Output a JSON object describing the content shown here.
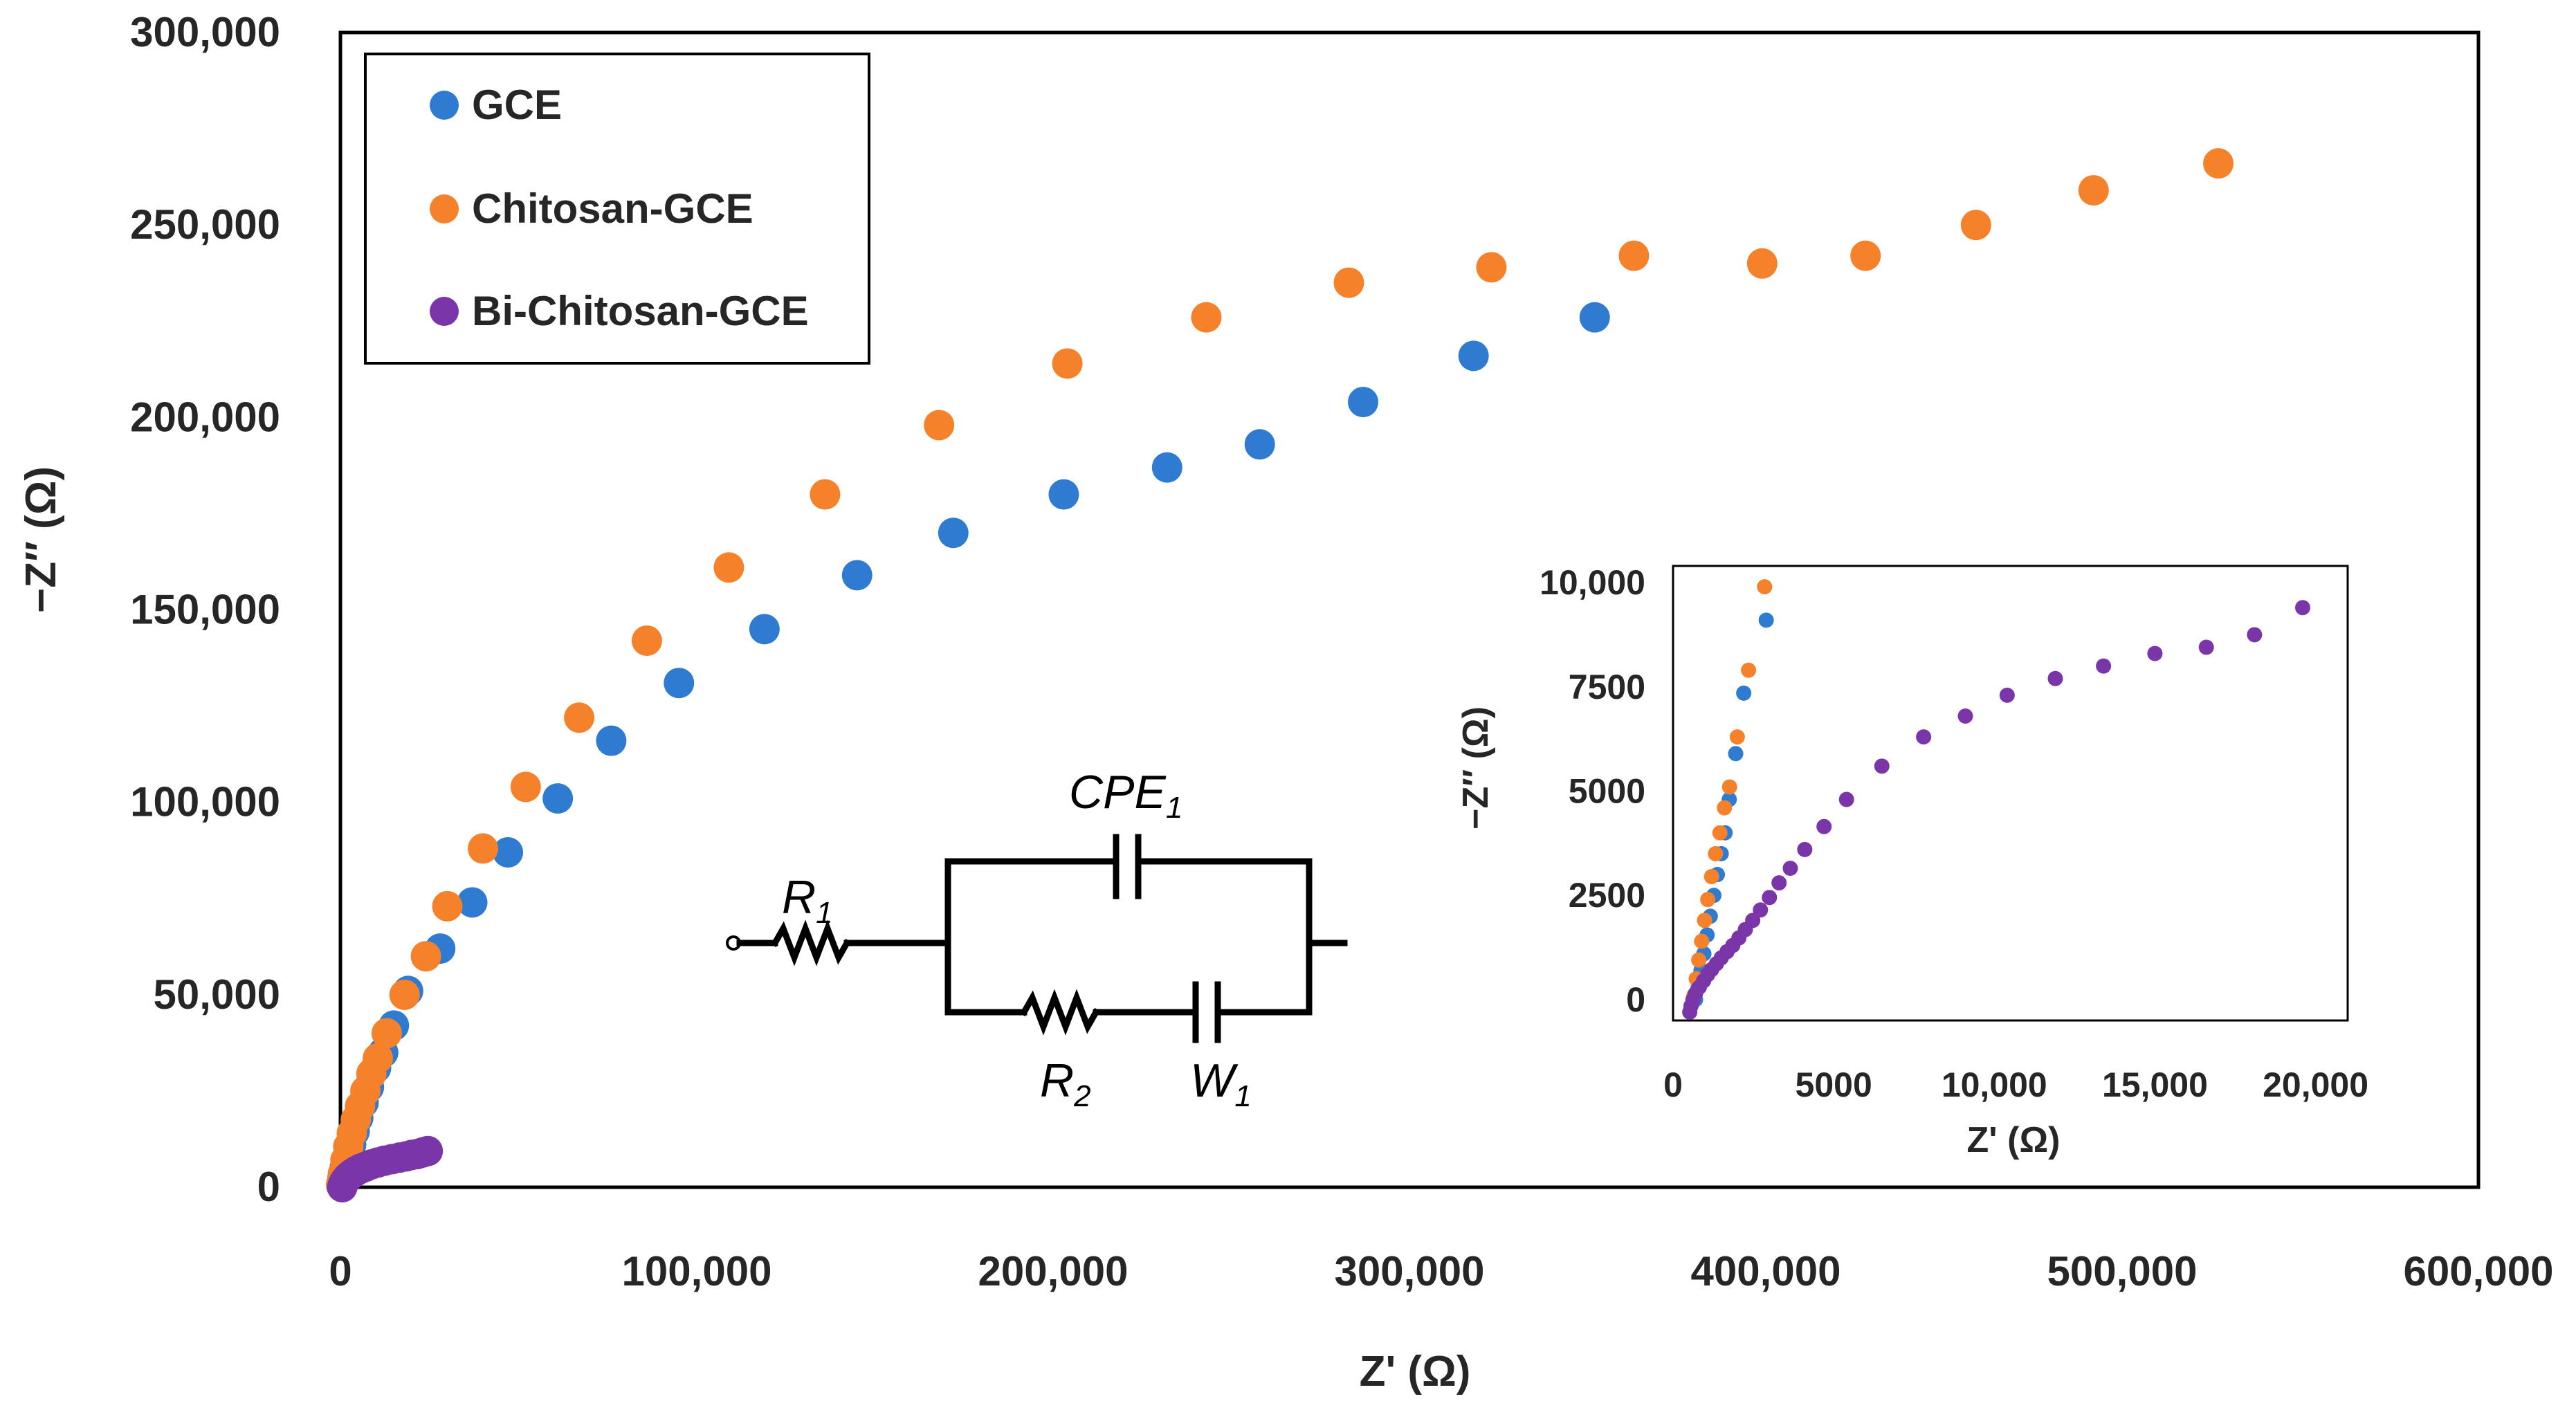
{
  "colors": {
    "GCE": "#2f7bd2",
    "Chitosan-GCE": "#f5822a",
    "Bi-Chitosan-GCE": "#7a35a9"
  },
  "chart_data": [
    {
      "type": "scatter",
      "title": "",
      "xlabel": "Z' (Ω)",
      "ylabel": "−Z″ (Ω)",
      "xlim": [
        0,
        600000
      ],
      "ylim": [
        0,
        300000
      ],
      "x_ticks": [
        "0",
        "100,000",
        "200,000",
        "300,000",
        "400,000",
        "500,000",
        "600,000"
      ],
      "y_ticks": [
        "0",
        "50,000",
        "100,000",
        "150,000",
        "200,000",
        "250,000",
        "300,000"
      ],
      "grid": false,
      "legend_position": "top-left",
      "series": [
        {
          "name": "GCE",
          "points": [
            [
              200,
              500
            ],
            [
              600,
              2500
            ],
            [
              1200,
              5000
            ],
            [
              2000,
              8000
            ],
            [
              3000,
              11000
            ],
            [
              4000,
              14500
            ],
            [
              5000,
              18000
            ],
            [
              6500,
              22000
            ],
            [
              8000,
              26000
            ],
            [
              10000,
              31000
            ],
            [
              12000,
              35000
            ],
            [
              15000,
              42000
            ],
            [
              19000,
              51000
            ],
            [
              28000,
              62000
            ],
            [
              37000,
              74000
            ],
            [
              47000,
              87000
            ],
            [
              61000,
              101000
            ],
            [
              76000,
              116000
            ],
            [
              95000,
              131000
            ],
            [
              119000,
              145000
            ],
            [
              145000,
              159000
            ],
            [
              172000,
              170000
            ],
            [
              203000,
              180000
            ],
            [
              232000,
              187000
            ],
            [
              258000,
              193000
            ],
            [
              287000,
              204000
            ],
            [
              318000,
              216000
            ],
            [
              352000,
              226000
            ]
          ]
        },
        {
          "name": "Chitosan-GCE",
          "points": [
            [
              200,
              800
            ],
            [
              700,
              3500
            ],
            [
              1400,
              7000
            ],
            [
              2200,
              10500
            ],
            [
              3200,
              14000
            ],
            [
              4300,
              17500
            ],
            [
              5500,
              21000
            ],
            [
              7000,
              25000
            ],
            [
              8700,
              29500
            ],
            [
              10500,
              33500
            ],
            [
              13000,
              40000
            ],
            [
              18000,
              50000
            ],
            [
              24000,
              60000
            ],
            [
              30000,
              73000
            ],
            [
              40000,
              88000
            ],
            [
              52000,
              104000
            ],
            [
              67000,
              122000
            ],
            [
              86000,
              142000
            ],
            [
              109000,
              161000
            ],
            [
              136000,
              180000
            ],
            [
              168000,
              198000
            ],
            [
              204000,
              214000
            ],
            [
              243000,
              226000
            ],
            [
              283000,
              235000
            ],
            [
              323000,
              239000
            ],
            [
              363000,
              242000
            ],
            [
              399000,
              240000
            ],
            [
              428000,
              242000
            ],
            [
              459000,
              250000
            ],
            [
              492000,
              259000
            ],
            [
              527000,
              266000
            ]
          ]
        },
        {
          "name": "Bi-Chitosan-GCE",
          "points": [
            [
              500,
              0
            ],
            [
              700,
              600
            ],
            [
              1000,
              1200
            ],
            [
              1400,
              1800
            ],
            [
              1900,
              2400
            ],
            [
              2600,
              3000
            ],
            [
              3400,
              3600
            ],
            [
              4400,
              4200
            ],
            [
              5600,
              4800
            ],
            [
              7000,
              5300
            ],
            [
              8600,
              5900
            ],
            [
              10400,
              6400
            ],
            [
              12400,
              6900
            ],
            [
              14500,
              7300
            ],
            [
              16600,
              7700
            ],
            [
              18400,
              8000
            ],
            [
              20000,
              8400
            ],
            [
              21500,
              8600
            ],
            [
              23000,
              9000
            ],
            [
              24500,
              9400
            ]
          ]
        }
      ]
    },
    {
      "type": "scatter",
      "title": "",
      "xlabel": "Z' (Ω)",
      "ylabel": "−Z″ (Ω)",
      "xlim": [
        0,
        21000
      ],
      "ylim": [
        -500,
        10400
      ],
      "x_ticks": [
        "0",
        "5000",
        "10,000",
        "15,000",
        "20,000"
      ],
      "y_ticks": [
        "0",
        "2500",
        "5000",
        "7500",
        "10,000"
      ],
      "grid": false,
      "series": [
        {
          "name": "GCE",
          "points": [
            [
              700,
              0
            ],
            [
              780,
              300
            ],
            [
              870,
              700
            ],
            [
              960,
              1100
            ],
            [
              1060,
              1550
            ],
            [
              1160,
              2000
            ],
            [
              1270,
              2500
            ],
            [
              1380,
              3000
            ],
            [
              1500,
              3500
            ],
            [
              1620,
              4000
            ],
            [
              1750,
              4800
            ],
            [
              1950,
              5900
            ],
            [
              2200,
              7350
            ],
            [
              2900,
              9100
            ]
          ]
        },
        {
          "name": "Chitosan-GCE",
          "points": [
            [
              650,
              100
            ],
            [
              720,
              500
            ],
            [
              800,
              950
            ],
            [
              890,
              1400
            ],
            [
              980,
              1900
            ],
            [
              1080,
              2400
            ],
            [
              1200,
              2950
            ],
            [
              1320,
              3500
            ],
            [
              1460,
              4000
            ],
            [
              1600,
              4600
            ],
            [
              1760,
              5100
            ],
            [
              2000,
              6300
            ],
            [
              2350,
              7900
            ],
            [
              2850,
              9900
            ]
          ]
        },
        {
          "name": "Bi-Chitosan-GCE",
          "points": [
            [
              520,
              -300
            ],
            [
              560,
              -150
            ],
            [
              620,
              0
            ],
            [
              700,
              150
            ],
            [
              820,
              300
            ],
            [
              950,
              450
            ],
            [
              1080,
              600
            ],
            [
              1200,
              720
            ],
            [
              1350,
              860
            ],
            [
              1500,
              1000
            ],
            [
              1680,
              1150
            ],
            [
              1860,
              1300
            ],
            [
              2050,
              1480
            ],
            [
              2250,
              1680
            ],
            [
              2480,
              1900
            ],
            [
              2720,
              2150
            ],
            [
              3000,
              2450
            ],
            [
              3300,
              2800
            ],
            [
              3650,
              3150
            ],
            [
              4100,
              3600
            ],
            [
              4700,
              4150
            ],
            [
              5400,
              4800
            ],
            [
              6500,
              5600
            ],
            [
              7800,
              6300
            ],
            [
              9100,
              6800
            ],
            [
              10400,
              7300
            ],
            [
              11900,
              7700
            ],
            [
              13400,
              8000
            ],
            [
              15000,
              8300
            ],
            [
              16600,
              8450
            ],
            [
              18100,
              8750
            ],
            [
              19600,
              9400
            ]
          ]
        }
      ]
    }
  ],
  "circuit": {
    "labels": [
      {
        "id": "R1",
        "main": "R",
        "sub": "1"
      },
      {
        "id": "CPE1",
        "main": "CPE",
        "sub": "1"
      },
      {
        "id": "R2",
        "main": "R",
        "sub": "2"
      },
      {
        "id": "W1",
        "main": "W",
        "sub": "1"
      }
    ]
  }
}
